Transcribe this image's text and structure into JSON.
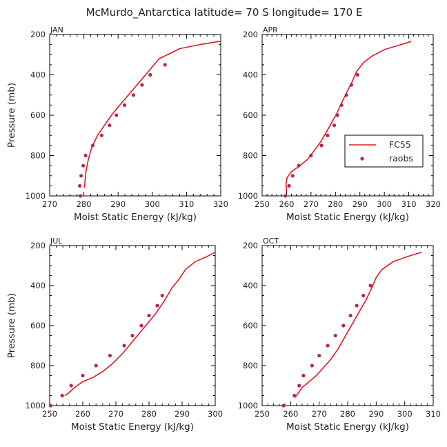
{
  "title": "McMurdo_Antarctica  latitude= 70 S longitude= 170 E",
  "colors": {
    "model_line": "#e0181e",
    "obs_dot": "#b0285a",
    "axis": "#000000"
  },
  "legend": {
    "line_label": "FC55",
    "dot_label": "raobs",
    "placement": "inside APR panel, lower-right"
  },
  "chart_data": [
    {
      "type": "line",
      "panel_label": "JAN",
      "xlabel": "Moist Static Energy (kJ/kg)",
      "ylabel": "Pressure (mb)",
      "xlim": [
        270,
        320
      ],
      "ylim": [
        1000,
        200
      ],
      "xticks": [
        270,
        280,
        290,
        300,
        310,
        320
      ],
      "yticks": [
        200,
        400,
        600,
        800,
        1000
      ],
      "series": [
        {
          "name": "FC55",
          "kind": "line",
          "points": [
            [
              280.2,
              960
            ],
            [
              280.3,
              930
            ],
            [
              280.6,
              880
            ],
            [
              281.3,
              820
            ],
            [
              282.3,
              760
            ],
            [
              284.0,
              700
            ],
            [
              286.0,
              650
            ],
            [
              288.5,
              590
            ],
            [
              291.0,
              540
            ],
            [
              293.5,
              490
            ],
            [
              296.0,
              440
            ],
            [
              298.5,
              390
            ],
            [
              302.0,
              320
            ],
            [
              308.0,
              270
            ],
            [
              314.0,
              250
            ],
            [
              320.0,
              233
            ]
          ]
        },
        {
          "name": "raobs",
          "kind": "scatter",
          "points": [
            [
              279.0,
              1000
            ],
            [
              278.8,
              950
            ],
            [
              279.2,
              900
            ],
            [
              279.8,
              850
            ],
            [
              280.5,
              800
            ],
            [
              282.6,
              750
            ],
            [
              285.2,
              700
            ],
            [
              287.5,
              650
            ],
            [
              289.5,
              600
            ],
            [
              291.9,
              550
            ],
            [
              294.5,
              500
            ],
            [
              297.0,
              450
            ],
            [
              299.4,
              400
            ],
            [
              303.7,
              350
            ]
          ]
        }
      ]
    },
    {
      "type": "line",
      "panel_label": "APR",
      "xlabel": "Moist Static Energy (kJ/kg)",
      "ylabel": "",
      "xlim": [
        250,
        320
      ],
      "ylim": [
        1000,
        200
      ],
      "xticks": [
        250,
        260,
        270,
        280,
        290,
        300,
        310,
        320
      ],
      "yticks": [
        200,
        400,
        600,
        800,
        1000
      ],
      "series": [
        {
          "name": "FC55",
          "kind": "line",
          "points": [
            [
              260.0,
              980
            ],
            [
              259.8,
              940
            ],
            [
              260.2,
              910
            ],
            [
              262.0,
              880
            ],
            [
              265.5,
              850
            ],
            [
              268.5,
              820
            ],
            [
              271.0,
              780
            ],
            [
              273.5,
              740
            ],
            [
              276.0,
              690
            ],
            [
              278.3,
              640
            ],
            [
              280.6,
              590
            ],
            [
              282.5,
              540
            ],
            [
              284.5,
              490
            ],
            [
              286.6,
              440
            ],
            [
              288.8,
              380
            ],
            [
              291.5,
              340
            ],
            [
              294.5,
              310
            ],
            [
              300.0,
              275
            ],
            [
              305.5,
              255
            ],
            [
              311.0,
              235
            ]
          ]
        },
        {
          "name": "raobs",
          "kind": "scatter",
          "points": [
            [
              259.5,
              1000
            ],
            [
              261.0,
              950
            ],
            [
              262.5,
              900
            ],
            [
              265.0,
              850
            ],
            [
              270.0,
              800
            ],
            [
              274.3,
              750
            ],
            [
              276.8,
              700
            ],
            [
              279.5,
              650
            ],
            [
              280.8,
              600
            ],
            [
              282.5,
              550
            ],
            [
              284.5,
              500
            ],
            [
              286.5,
              450
            ],
            [
              289.0,
              400
            ]
          ]
        }
      ]
    },
    {
      "type": "line",
      "panel_label": "JUL",
      "xlabel": "Moist Static Energy (kJ/kg)",
      "ylabel": "Pressure (mb)",
      "xlim": [
        250,
        300
      ],
      "ylim": [
        1000,
        200
      ],
      "xticks": [
        250,
        260,
        270,
        280,
        290,
        300
      ],
      "yticks": [
        200,
        400,
        600,
        800,
        1000
      ],
      "series": [
        {
          "name": "FC55",
          "kind": "line",
          "points": [
            [
              254.5,
              950
            ],
            [
              255.5,
              940
            ],
            [
              257.5,
              910
            ],
            [
              260.0,
              880
            ],
            [
              263.0,
              860
            ],
            [
              266.0,
              830
            ],
            [
              269.0,
              790
            ],
            [
              272.0,
              740
            ],
            [
              274.5,
              690
            ],
            [
              277.0,
              640
            ],
            [
              279.5,
              590
            ],
            [
              282.0,
              540
            ],
            [
              284.5,
              480
            ],
            [
              287.0,
              410
            ],
            [
              289.0,
              370
            ],
            [
              291.0,
              320
            ],
            [
              294.0,
              280
            ],
            [
              297.5,
              255
            ],
            [
              300.0,
              233
            ]
          ]
        },
        {
          "name": "raobs",
          "kind": "scatter",
          "points": [
            [
              250.3,
              1000
            ],
            [
              253.8,
              950
            ],
            [
              256.5,
              900
            ],
            [
              260.0,
              850
            ],
            [
              264.0,
              800
            ],
            [
              268.2,
              750
            ],
            [
              272.5,
              700
            ],
            [
              275.0,
              650
            ],
            [
              277.7,
              600
            ],
            [
              280.0,
              550
            ],
            [
              282.5,
              500
            ],
            [
              284.0,
              450
            ]
          ]
        }
      ]
    },
    {
      "type": "line",
      "panel_label": "OCT",
      "xlabel": "Moist Static Energy (kJ/kg)",
      "ylabel": "",
      "xlim": [
        250,
        310
      ],
      "ylim": [
        1000,
        200
      ],
      "xticks": [
        250,
        260,
        270,
        280,
        290,
        300,
        310
      ],
      "yticks": [
        200,
        400,
        600,
        800,
        1000
      ],
      "series": [
        {
          "name": "FC55",
          "kind": "line",
          "points": [
            [
              261.5,
              960
            ],
            [
              262.5,
              940
            ],
            [
              264.0,
              910
            ],
            [
              266.5,
              880
            ],
            [
              269.0,
              850
            ],
            [
              271.5,
              810
            ],
            [
              274.0,
              770
            ],
            [
              276.5,
              720
            ],
            [
              278.5,
              670
            ],
            [
              280.5,
              620
            ],
            [
              282.5,
              570
            ],
            [
              284.5,
              520
            ],
            [
              286.5,
              470
            ],
            [
              288.5,
              410
            ],
            [
              290.0,
              360
            ],
            [
              292.0,
              320
            ],
            [
              296.0,
              280
            ],
            [
              301.0,
              255
            ],
            [
              306.0,
              233
            ]
          ]
        },
        {
          "name": "raobs",
          "kind": "scatter",
          "points": [
            [
              257.5,
              1000
            ],
            [
              261.3,
              950
            ],
            [
              263.0,
              900
            ],
            [
              264.5,
              850
            ],
            [
              267.5,
              800
            ],
            [
              270.0,
              750
            ],
            [
              273.0,
              700
            ],
            [
              275.7,
              650
            ],
            [
              278.5,
              600
            ],
            [
              281.0,
              550
            ],
            [
              283.2,
              500
            ],
            [
              285.5,
              450
            ],
            [
              288.0,
              400
            ]
          ]
        }
      ]
    }
  ]
}
